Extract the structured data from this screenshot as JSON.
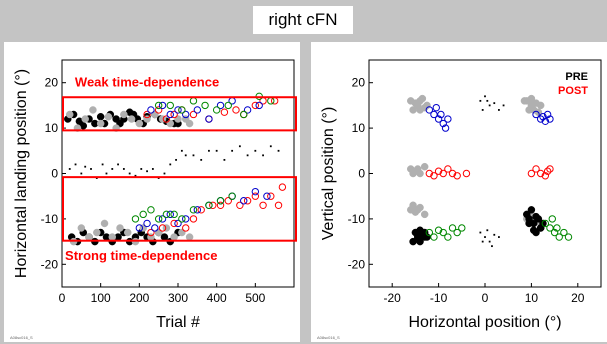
{
  "header": {
    "title": "right cFN"
  },
  "colors": {
    "pre": "#000000",
    "post": "#ff0000",
    "gray": "#b0b0b0",
    "blue": "#0000cc",
    "green": "#008800",
    "annotation": "#ff0000"
  },
  "chart_data": [
    {
      "type": "scatter",
      "xlabel": "Trial #",
      "ylabel": "Horizontal landing position (°)",
      "xlim": [
        0,
        600
      ],
      "ylim": [
        -25,
        25
      ],
      "xticks": [
        0,
        100,
        200,
        300,
        400,
        500
      ],
      "yticks": [
        -20,
        -10,
        0,
        10,
        20
      ],
      "annotations": [
        "Weak time-dependence",
        "Strong time-dependence"
      ],
      "corner_label": "A08sc016_S",
      "series": [
        {
          "name": "black-upper",
          "color": "#000000",
          "filled": true,
          "x": [
            15,
            30,
            45,
            55,
            70,
            85,
            100,
            110,
            125,
            140,
            150,
            160,
            175,
            185,
            195,
            210,
            220,
            240,
            255,
            270,
            290,
            300
          ],
          "y": [
            12,
            13,
            11.5,
            10.5,
            12,
            11,
            12.5,
            11,
            13,
            12,
            11,
            12,
            13.5,
            13,
            12,
            11,
            12.5,
            13,
            12,
            11.5,
            11,
            11
          ]
        },
        {
          "name": "gray-upper",
          "color": "#b0b0b0",
          "filled": true,
          "x": [
            20,
            40,
            60,
            80,
            100,
            120,
            140,
            160,
            180,
            200,
            220,
            240,
            260,
            280,
            300,
            320,
            330
          ],
          "y": [
            13,
            10,
            12,
            14,
            11,
            12.5,
            10,
            13,
            12,
            11,
            12,
            13,
            12,
            11,
            12,
            12,
            11
          ]
        },
        {
          "name": "red-upper",
          "color": "#ff0000",
          "filled": false,
          "x": [
            220,
            250,
            270,
            290,
            310,
            340,
            380,
            420,
            450,
            470,
            500,
            520,
            550
          ],
          "y": [
            13,
            14,
            12,
            13,
            14,
            13,
            12,
            13.5,
            14,
            13,
            15,
            16,
            16
          ]
        },
        {
          "name": "blue-upper",
          "color": "#0000cc",
          "filled": false,
          "x": [
            230,
            260,
            280,
            300,
            320,
            350,
            380,
            410,
            440,
            480,
            510
          ],
          "y": [
            14,
            15,
            13,
            14,
            13,
            14,
            12,
            15,
            16,
            14,
            15
          ]
        },
        {
          "name": "green-upper",
          "color": "#008800",
          "filled": false,
          "x": [
            250,
            280,
            310,
            340,
            370,
            400,
            430,
            470,
            510,
            540
          ],
          "y": [
            15,
            15,
            14,
            16,
            15,
            14,
            15,
            13,
            17,
            16
          ]
        },
        {
          "name": "black-middle",
          "color": "#000000",
          "filled": false,
          "small": true,
          "x": [
            20,
            35,
            50,
            60,
            75,
            90,
            105,
            115,
            130,
            145,
            160,
            175,
            190,
            205,
            220,
            235,
            250,
            265,
            280,
            295,
            310,
            320,
            340,
            360,
            380,
            400,
            420,
            440,
            460,
            480,
            500,
            520,
            540,
            560
          ],
          "y": [
            1,
            2,
            0,
            1.5,
            1,
            -1,
            2,
            0,
            1,
            2,
            1,
            0,
            -0.5,
            1,
            0.5,
            1,
            -1,
            0,
            2,
            3,
            5,
            4,
            4,
            3,
            5,
            5,
            3,
            5,
            6,
            4,
            5,
            4,
            6,
            5
          ]
        },
        {
          "name": "black-lower",
          "color": "#000000",
          "filled": true,
          "x": [
            25,
            40,
            55,
            70,
            85,
            100,
            115,
            130,
            145,
            160,
            175,
            190,
            205,
            220,
            235,
            250,
            265,
            280,
            300
          ],
          "y": [
            -14,
            -15,
            -13,
            -14,
            -15,
            -13,
            -14,
            -15,
            -14,
            -13,
            -15,
            -14,
            -13,
            -14,
            -15,
            -13,
            -14,
            -15,
            -13
          ]
        },
        {
          "name": "gray-lower",
          "color": "#b0b0b0",
          "filled": true,
          "x": [
            30,
            50,
            70,
            90,
            110,
            130,
            150,
            170,
            190,
            210,
            230,
            250,
            270,
            290,
            310,
            330
          ],
          "y": [
            -15,
            -12,
            -14,
            -13,
            -11,
            -14,
            -12,
            -13,
            -15,
            -12,
            -14,
            -13,
            -12,
            -14,
            -13,
            -14
          ]
        },
        {
          "name": "red-lower",
          "color": "#ff0000",
          "filled": false,
          "x": [
            230,
            260,
            290,
            320,
            340,
            360,
            390,
            410,
            430,
            460,
            480,
            500,
            520,
            540,
            560,
            570
          ],
          "y": [
            -13,
            -12,
            -11,
            -12,
            -10,
            -8,
            -7,
            -7,
            -6,
            -7,
            -6,
            -5,
            -7,
            -5,
            -7,
            -3
          ]
        },
        {
          "name": "blue-lower",
          "color": "#0000cc",
          "filled": false,
          "x": [
            200,
            220,
            240,
            260,
            280,
            300,
            320,
            350,
            380,
            410,
            440,
            470,
            500,
            530
          ],
          "y": [
            -12,
            -11,
            -12,
            -10,
            -9,
            -11,
            -10,
            -8,
            -7,
            -6,
            -5,
            -6,
            -4,
            -5
          ]
        },
        {
          "name": "green-lower",
          "color": "#008800",
          "filled": false,
          "x": [
            190,
            210,
            230,
            250,
            270,
            290,
            310,
            340,
            380,
            410,
            440
          ],
          "y": [
            -10,
            -9,
            -8,
            -10,
            -9,
            -9,
            -10,
            -8,
            -7,
            -6,
            -5
          ]
        }
      ]
    },
    {
      "type": "scatter",
      "xlabel": "Horizontal position (°)",
      "ylabel": "Vertical position (°)",
      "xlim": [
        -25,
        25
      ],
      "ylim": [
        -25,
        25
      ],
      "xticks": [
        -20,
        -10,
        0,
        10,
        20
      ],
      "yticks": [
        -20,
        -10,
        0,
        10,
        20
      ],
      "legend": [
        "PRE",
        "POST"
      ],
      "legend_position": "top-right",
      "corner_label": "A08sc016_S",
      "series": [
        {
          "name": "gray-filled",
          "color": "#b0b0b0",
          "filled": true,
          "x": [
            -16,
            -15,
            -14.5,
            -14,
            -13,
            -15.5,
            -12.5,
            -14,
            -13.5,
            -16,
            -15,
            -14,
            -13,
            -15.5,
            -14.5,
            9,
            10,
            11,
            10.5,
            12,
            9.5,
            8.5,
            11.5,
            10,
            -16,
            -15,
            -14,
            -13,
            -15.5,
            -14.5,
            9,
            10,
            11,
            12,
            10.5,
            9.5
          ],
          "y": [
            16,
            15.5,
            15,
            16,
            14.5,
            14,
            15,
            14,
            16.5,
            1,
            0.5,
            0,
            1.5,
            0,
            1,
            16,
            15,
            15.5,
            14,
            15,
            14,
            16,
            13.5,
            16.5,
            -8,
            -8.5,
            -7.5,
            -9,
            -7,
            -8,
            -10,
            -9,
            -10.5,
            -11,
            -9.5,
            -10
          ]
        },
        {
          "name": "blue-open",
          "color": "#0000cc",
          "filled": false,
          "x": [
            -12,
            -11,
            -10.5,
            -10,
            -9.5,
            -9,
            -8.5,
            -8,
            11,
            12,
            12.5,
            13,
            13.5,
            14
          ],
          "y": [
            14,
            13,
            14.5,
            12,
            13,
            11,
            10,
            12,
            13,
            12,
            12.5,
            11.5,
            13,
            12
          ]
        },
        {
          "name": "red-open",
          "color": "#ff0000",
          "filled": false,
          "x": [
            -12,
            -11,
            -10,
            -9,
            -8,
            -7,
            -6,
            -4,
            10,
            11,
            12,
            13,
            13.5,
            14
          ],
          "y": [
            0,
            -0.5,
            0.5,
            0,
            1,
            0,
            -0.5,
            0,
            0,
            1,
            0,
            -0.5,
            0.5,
            1
          ]
        },
        {
          "name": "black-filled",
          "color": "#000000",
          "filled": true,
          "x": [
            -15,
            -14.5,
            -14,
            -13.5,
            -13,
            -15.5,
            -14,
            -13,
            -12.5,
            9,
            9.5,
            10,
            10.5,
            11,
            11.5,
            12,
            12.5,
            9.5,
            10.5,
            11,
            12
          ],
          "y": [
            -13,
            -14,
            -15,
            -13.5,
            -14,
            -15,
            -12.5,
            -13,
            -14,
            -9,
            -10,
            -8,
            -11,
            -9.5,
            -10,
            -12,
            -11,
            -11,
            -12.5,
            -13,
            -12
          ]
        },
        {
          "name": "green-open",
          "color": "#008800",
          "filled": false,
          "x": [
            -12,
            -11,
            -10,
            -9,
            -8,
            -7,
            -6,
            -5,
            13,
            14,
            15,
            16,
            17,
            18,
            14.5,
            15.5
          ],
          "y": [
            -13,
            -14,
            -12.5,
            -13,
            -14,
            -12,
            -13,
            -12,
            -11,
            -12,
            -13,
            -14,
            -13,
            -14,
            -10,
            -12
          ]
        },
        {
          "name": "black-small",
          "color": "#000000",
          "filled": false,
          "small": true,
          "x": [
            -1,
            0,
            1,
            -0.5,
            0.5,
            2,
            3,
            4,
            -1,
            0,
            1,
            2,
            3,
            0.5,
            -0.5,
            1.5
          ],
          "y": [
            16,
            17,
            15,
            14,
            16,
            15.5,
            14,
            15,
            -13,
            -14,
            -15,
            -13.5,
            -14,
            -12.5,
            -15,
            -16
          ]
        }
      ]
    }
  ]
}
